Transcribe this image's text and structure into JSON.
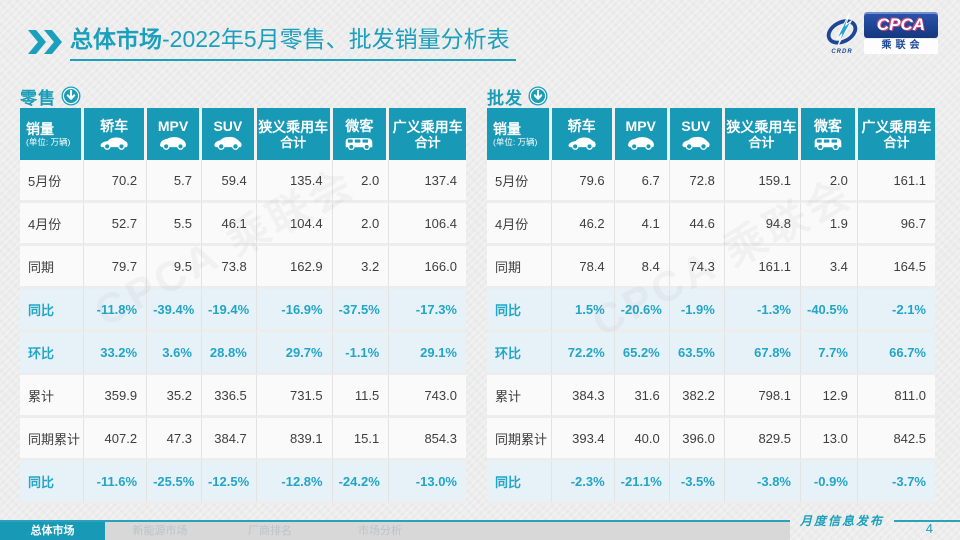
{
  "page": {
    "title_highlight": "总体市场",
    "title_rest": "-2022年5月零售、批发销量分析表",
    "footer_note": "月度信息发布",
    "page_number": "4",
    "accent_color": "#1A9FBC",
    "header_color": "#1899B6",
    "percent_row_bg": "#E7F2F8"
  },
  "logo": {
    "acronym": "CPCA",
    "cn_name": "乘联会",
    "swoosh_caption": "CRDR"
  },
  "columns": [
    {
      "label": "销量",
      "sub": "(单位: 万辆)"
    },
    {
      "label": "轿车",
      "icon": "sedan-icon"
    },
    {
      "label": "MPV",
      "icon": "mpv-icon"
    },
    {
      "label": "SUV",
      "icon": "suv-icon"
    },
    {
      "label": "狭义乘用车",
      "label2": "合计"
    },
    {
      "label": "微客",
      "icon": "microvan-icon"
    },
    {
      "label": "广义乘用车",
      "label2": "合计"
    }
  ],
  "tables": [
    {
      "id": "retail",
      "section_label": "零售",
      "rows": [
        {
          "label": "5月份",
          "type": "value",
          "values": [
            "70.2",
            "5.7",
            "59.4",
            "135.4",
            "2.0",
            "137.4"
          ]
        },
        {
          "label": "4月份",
          "type": "value",
          "values": [
            "52.7",
            "5.5",
            "46.1",
            "104.4",
            "2.0",
            "106.4"
          ]
        },
        {
          "label": "同期",
          "type": "value",
          "values": [
            "79.7",
            "9.5",
            "73.8",
            "162.9",
            "3.2",
            "166.0"
          ]
        },
        {
          "label": "同比",
          "type": "percent",
          "values": [
            "-11.8%",
            "-39.4%",
            "-19.4%",
            "-16.9%",
            "-37.5%",
            "-17.3%"
          ]
        },
        {
          "label": "环比",
          "type": "percent",
          "values": [
            "33.2%",
            "3.6%",
            "28.8%",
            "29.7%",
            "-1.1%",
            "29.1%"
          ]
        },
        {
          "label": "累计",
          "type": "value",
          "values": [
            "359.9",
            "35.2",
            "336.5",
            "731.5",
            "11.5",
            "743.0"
          ]
        },
        {
          "label": "同期累计",
          "type": "value",
          "values": [
            "407.2",
            "47.3",
            "384.7",
            "839.1",
            "15.1",
            "854.3"
          ]
        },
        {
          "label": "同比",
          "type": "percent",
          "values": [
            "-11.6%",
            "-25.5%",
            "-12.5%",
            "-12.8%",
            "-24.2%",
            "-13.0%"
          ]
        }
      ]
    },
    {
      "id": "wholesale",
      "section_label": "批发",
      "rows": [
        {
          "label": "5月份",
          "type": "value",
          "values": [
            "79.6",
            "6.7",
            "72.8",
            "159.1",
            "2.0",
            "161.1"
          ]
        },
        {
          "label": "4月份",
          "type": "value",
          "values": [
            "46.2",
            "4.1",
            "44.6",
            "94.8",
            "1.9",
            "96.7"
          ]
        },
        {
          "label": "同期",
          "type": "value",
          "values": [
            "78.4",
            "8.4",
            "74.3",
            "161.1",
            "3.4",
            "164.5"
          ]
        },
        {
          "label": "同比",
          "type": "percent",
          "values": [
            "1.5%",
            "-20.6%",
            "-1.9%",
            "-1.3%",
            "-40.5%",
            "-2.1%"
          ]
        },
        {
          "label": "环比",
          "type": "percent",
          "values": [
            "72.2%",
            "65.2%",
            "63.5%",
            "67.8%",
            "7.7%",
            "66.7%"
          ]
        },
        {
          "label": "累计",
          "type": "value",
          "values": [
            "384.3",
            "31.6",
            "382.2",
            "798.1",
            "12.9",
            "811.0"
          ]
        },
        {
          "label": "同期累计",
          "type": "value",
          "values": [
            "393.4",
            "40.0",
            "396.0",
            "829.5",
            "13.0",
            "842.5"
          ]
        },
        {
          "label": "同比",
          "type": "percent",
          "values": [
            "-2.3%",
            "-21.1%",
            "-3.5%",
            "-3.8%",
            "-0.9%",
            "-3.7%"
          ]
        }
      ]
    }
  ],
  "footer_tabs": [
    {
      "label": "总体市场",
      "active": true
    },
    {
      "label": "新能源市场",
      "active": false
    },
    {
      "label": "厂商排名",
      "active": false
    },
    {
      "label": "市场分析",
      "active": false
    }
  ]
}
